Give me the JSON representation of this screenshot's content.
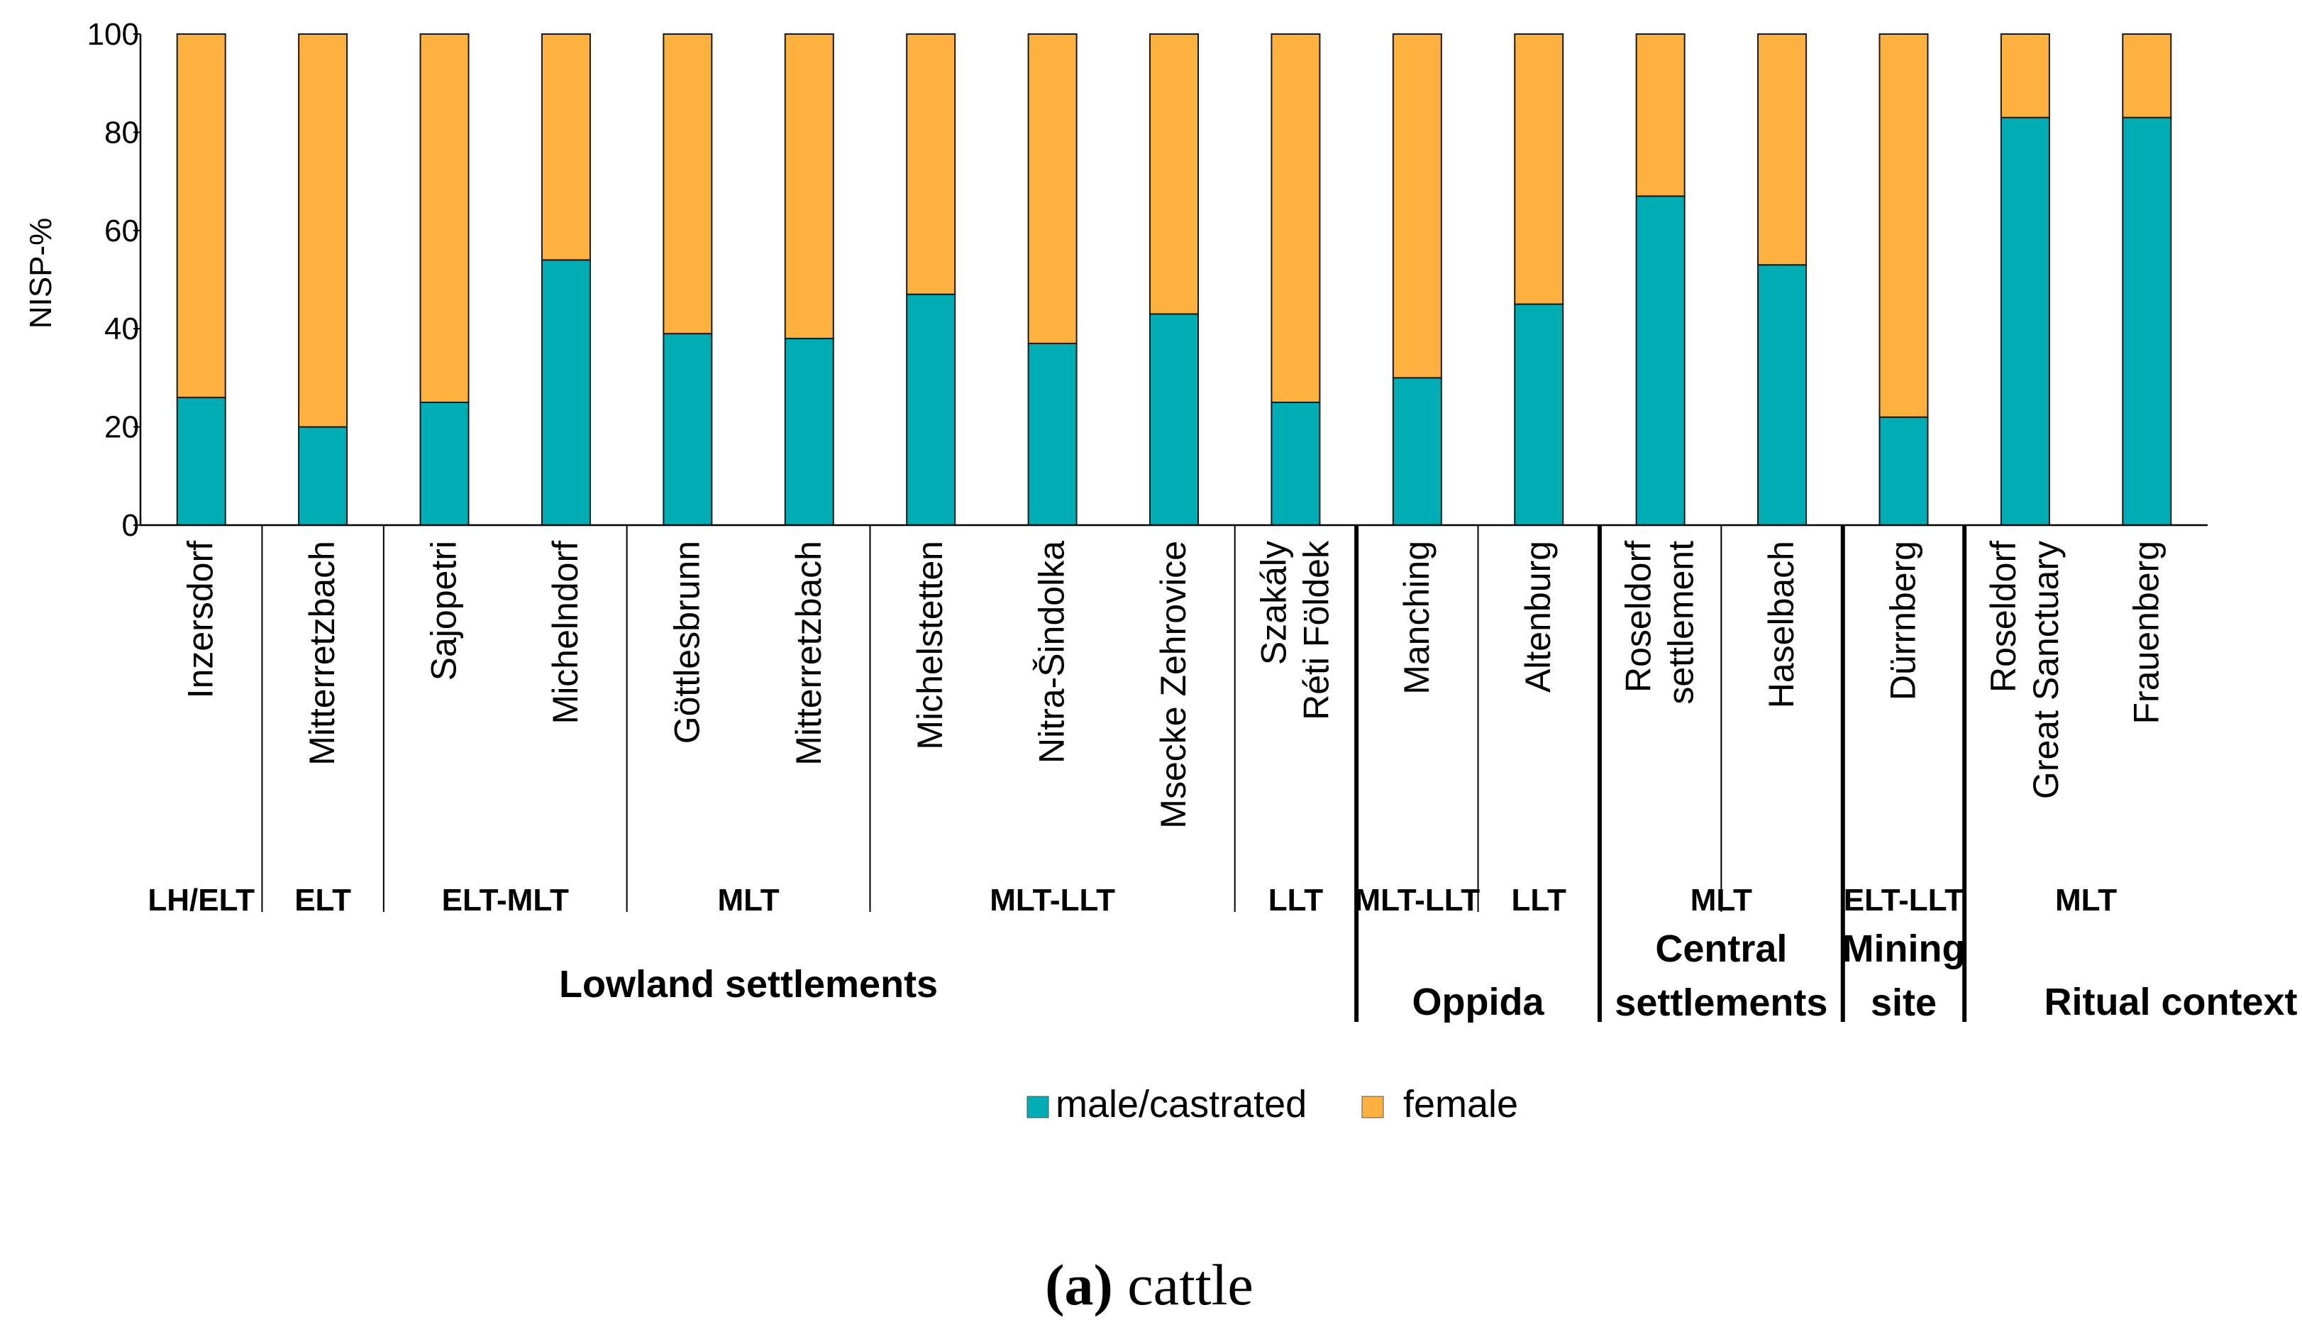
{
  "chart_data": {
    "type": "bar",
    "stacked": true,
    "categories": [
      [
        "Inzersdorf"
      ],
      [
        "Mitterretzbach"
      ],
      [
        "Sajopetri"
      ],
      [
        "Michelndorf"
      ],
      [
        "Göttlesbrunn"
      ],
      [
        "Mitterretzbach"
      ],
      [
        "Michelstetten"
      ],
      [
        "Nitra-Šindolka"
      ],
      [
        "Msecke Zehrovice"
      ],
      [
        "Szakály",
        "Réti Földek"
      ],
      [
        "Manching"
      ],
      [
        "Altenburg"
      ],
      [
        "Roseldorf",
        "settlement"
      ],
      [
        "Haselbach"
      ],
      [
        "Dürrnberg"
      ],
      [
        "Roseldorf",
        "Great Sanctuary"
      ],
      [
        "Frauenberg"
      ]
    ],
    "series": [
      {
        "name": "male/castrated",
        "color": "#00adb5",
        "values": [
          26,
          20,
          25,
          54,
          39,
          38,
          47,
          37,
          43,
          25,
          30,
          45,
          67,
          53,
          22,
          83,
          83
        ]
      },
      {
        "name": "female",
        "color": "#ffb140",
        "values": [
          74,
          80,
          75,
          46,
          61,
          62,
          53,
          63,
          57,
          75,
          70,
          55,
          33,
          47,
          78,
          17,
          17
        ]
      }
    ],
    "ylabel": "NISP-%",
    "xlabel": "",
    "ylim": [
      0,
      100
    ],
    "yticks": [
      0,
      20,
      40,
      60,
      80,
      100
    ],
    "periods": [
      {
        "label": "LH/ELT",
        "from": 0,
        "to": 0
      },
      {
        "label": "ELT",
        "from": 1,
        "to": 1
      },
      {
        "label": "ELT-MLT",
        "from": 2,
        "to": 3
      },
      {
        "label": "MLT",
        "from": 4,
        "to": 5
      },
      {
        "label": "MLT-LLT",
        "from": 6,
        "to": 8
      },
      {
        "label": "LLT",
        "from": 9,
        "to": 9
      },
      {
        "label": "MLT-LLT",
        "from": 10,
        "to": 10
      },
      {
        "label": "LLT",
        "from": 11,
        "to": 11
      },
      {
        "label": "MLT",
        "from": 12,
        "to": 13
      },
      {
        "label": "ELT-LLT",
        "from": 14,
        "to": 14
      },
      {
        "label": "MLT",
        "from": 15,
        "to": 16
      }
    ],
    "groups": [
      {
        "label": [
          "Lowland settlements"
        ],
        "from": 0,
        "to": 9
      },
      {
        "label": [
          "Oppida"
        ],
        "from": 10,
        "to": 11
      },
      {
        "label": [
          "Central",
          "settlements"
        ],
        "from": 12,
        "to": 13
      },
      {
        "label": [
          "Mining",
          "site"
        ],
        "from": 14,
        "to": 14
      },
      {
        "label": [
          "Ritual context"
        ],
        "from": 15,
        "to": 16
      }
    ],
    "caption_bold": "(a)",
    "caption_rest": "cattle"
  }
}
